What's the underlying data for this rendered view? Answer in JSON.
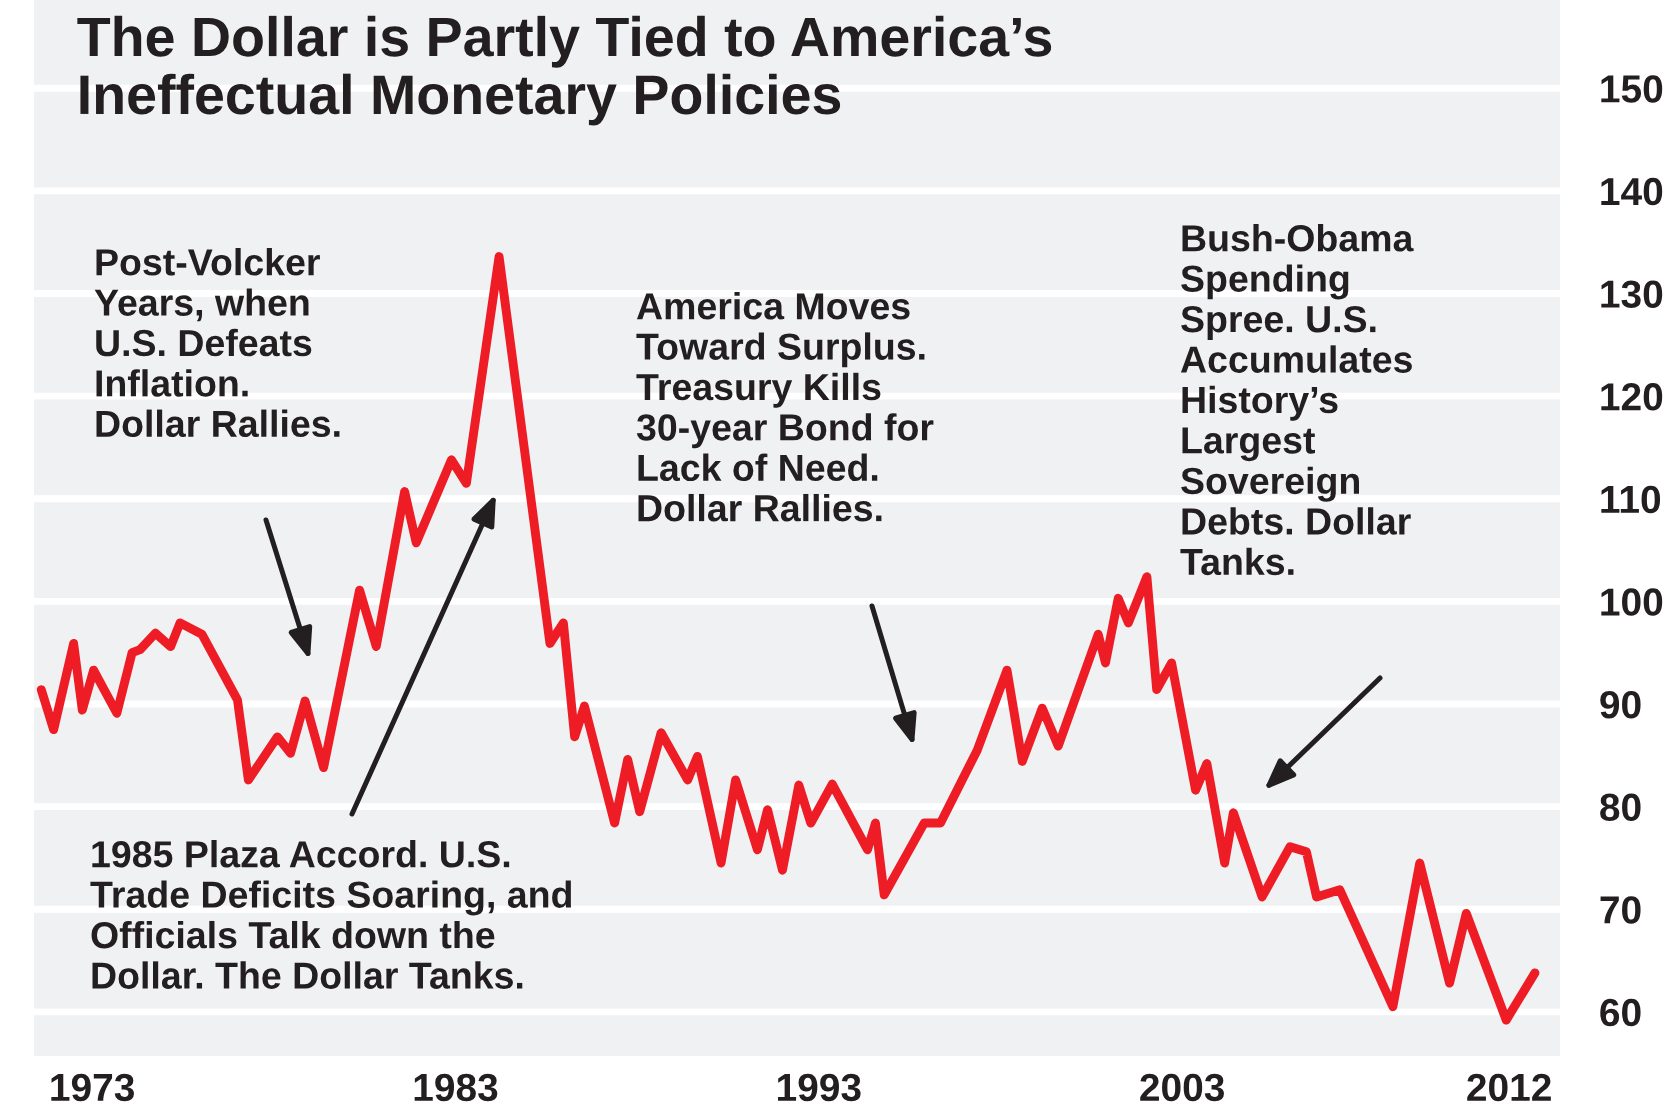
{
  "chart_data": {
    "type": "line",
    "title": "The Dollar is Partly Tied to America’s\nIneffectual Monetary Policies",
    "x": [
      1971.6,
      1971.94,
      1972.49,
      1972.73,
      1973.04,
      1973.68,
      1974.1,
      1974.32,
      1974.74,
      1975.16,
      1975.42,
      1976.02,
      1977.0,
      1977.3,
      1978.1,
      1978.46,
      1978.86,
      1979.37,
      1980.36,
      1980.82,
      1981.6,
      1981.92,
      1982.89,
      1983.3,
      1984.2,
      1985.6,
      1985.97,
      1986.28,
      1986.55,
      1987.38,
      1987.74,
      1988.07,
      1988.66,
      1989.39,
      1989.66,
      1990.31,
      1990.71,
      1991.31,
      1991.59,
      1992.0,
      1992.45,
      1992.78,
      1993.37,
      1994.34,
      1994.56,
      1994.8,
      1995.9,
      1996.35,
      1997.36,
      1998.18,
      1998.6,
      1999.15,
      1999.59,
      2000.69,
      2000.89,
      2001.24,
      2001.52,
      2002.03,
      2002.3,
      2002.71,
      2003.37,
      2003.68,
      2004.17,
      2004.41,
      2005.2,
      2005.97,
      2006.42,
      2006.7,
      2007.34,
      2008.8,
      2009.54,
      2010.36,
      2010.82,
      2011.92,
      2012.71
    ],
    "series": [
      {
        "color": "#ee1c25",
        "values": [
          91.4,
          87.5,
          95.9,
          89.4,
          93.3,
          89.1,
          95.0,
          95.3,
          96.9,
          95.6,
          97.9,
          96.8,
          90.4,
          82.6,
          86.8,
          85.2,
          90.3,
          83.8,
          101.1,
          95.6,
          110.7,
          105.7,
          113.8,
          111.5,
          133.6,
          95.9,
          97.9,
          86.8,
          89.8,
          78.4,
          84.6,
          79.5,
          87.2,
          82.6,
          84.9,
          74.5,
          82.6,
          75.8,
          79.7,
          73.8,
          82.1,
          78.4,
          82.2,
          75.8,
          78.4,
          71.4,
          78.4,
          78.4,
          85.5,
          93.3,
          84.4,
          89.6,
          85.9,
          96.8,
          94.0,
          100.3,
          97.9,
          102.4,
          91.4,
          94.0,
          81.6,
          84.2,
          74.5,
          79.4,
          71.2,
          76.1,
          75.6,
          71.2,
          71.9,
          60.5,
          74.5,
          62.8,
          69.6,
          59.2,
          63.8
        ]
      }
    ],
    "xlim": [
      1971.4,
      2013.4
    ],
    "xticks": [
      1973,
      1983,
      1993,
      2003,
      2012
    ],
    "ylim": [
      55.7,
      158.6
    ],
    "yticks": [
      60,
      70,
      80,
      90,
      100,
      110,
      120,
      130,
      140,
      150
    ],
    "grid": "y",
    "marker": "none",
    "line_style": "solid",
    "annotations": [
      "Post-Volcker\nYears, when\nU.S. Defeats\nInflation.\nDollar Rallies.",
      "1985 Plaza Accord. U.S.\nTrade Deficits Soaring, and\nOfficials Talk down the\nDollar. The Dollar Tanks.",
      "America Moves\nToward Surplus.\nTreasury Kills\n30-year Bond for\nLack of Need.\nDollar Rallies.",
      "Bush-Obama\nSpending\nSpree. U.S.\nAccumulates\nHistory’s\nLargest\nSovereign\nDebts. Dollar\nTanks."
    ]
  }
}
